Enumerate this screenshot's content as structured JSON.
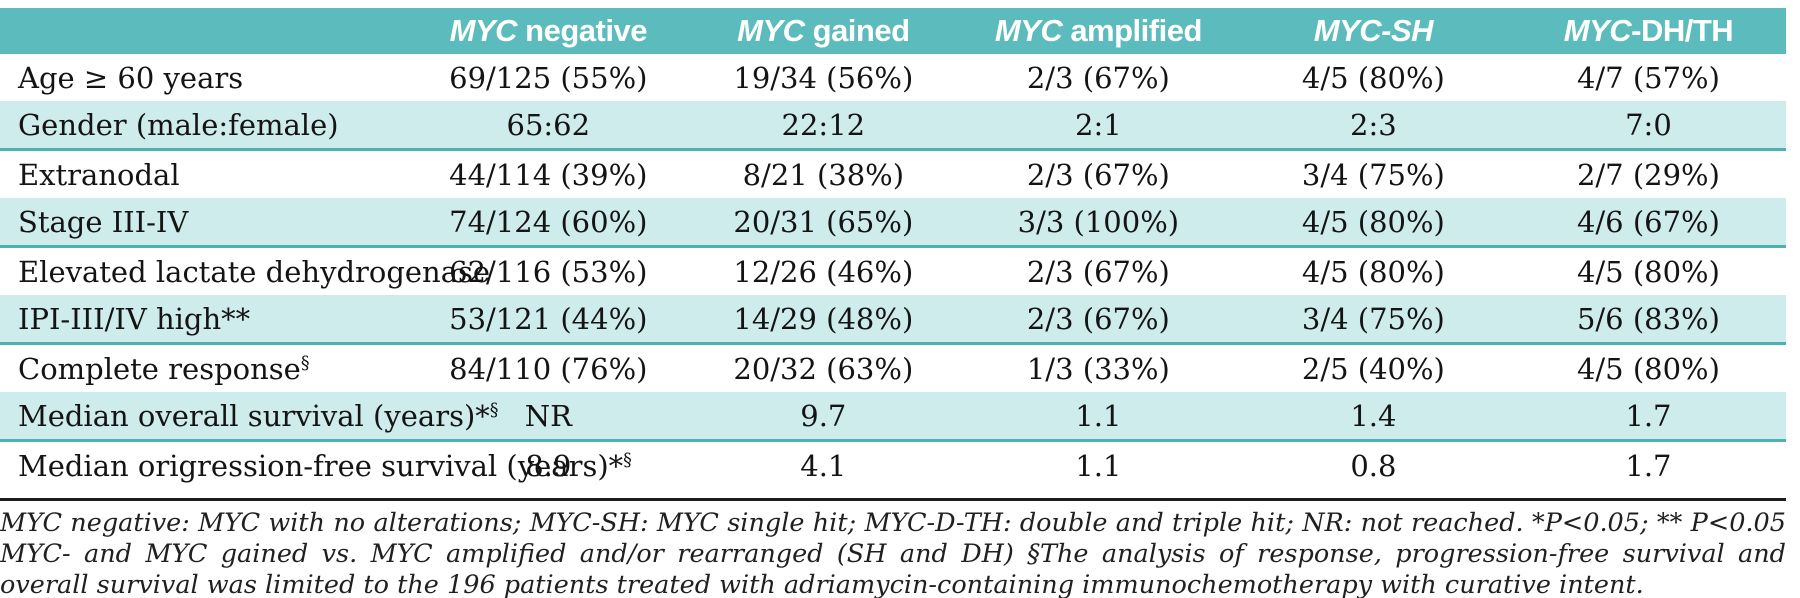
{
  "table": {
    "header": {
      "row_label_column": "",
      "columns": [
        {
          "italic": "MYC",
          "regular": " negative"
        },
        {
          "italic": "MYC",
          "regular": " gained"
        },
        {
          "italic": "MYC",
          "regular": " amplified"
        },
        {
          "italic": "MYC-SH",
          "regular": ""
        },
        {
          "italic": "MYC",
          "regular": "-DH/TH"
        }
      ]
    },
    "rows": [
      {
        "label": "Age ≥ 60 years",
        "sup": "",
        "values": [
          "69/125 (55%)",
          "19/34 (56%)",
          "2/3 (67%)",
          "4/5 (80%)",
          "4/7 (57%)"
        ]
      },
      {
        "label": "Gender (male:female)",
        "sup": "",
        "values": [
          "65:62",
          "22:12",
          "2:1",
          "2:3",
          "7:0"
        ]
      },
      {
        "label": "Extranodal",
        "sup": "",
        "values": [
          "44/114 (39%)",
          "8/21 (38%)",
          "2/3 (67%)",
          "3/4 (75%)",
          "2/7 (29%)"
        ]
      },
      {
        "label": "Stage III-IV",
        "sup": "",
        "values": [
          "74/124 (60%)",
          "20/31 (65%)",
          "3/3 (100%)",
          "4/5 (80%)",
          "4/6 (67%)"
        ]
      },
      {
        "label": "Elevated lactate dehydrogenase",
        "sup": "",
        "values": [
          "62/116 (53%)",
          "12/26 (46%)",
          "2/3 (67%)",
          "4/5 (80%)",
          "4/5 (80%)"
        ]
      },
      {
        "label": "IPI-III/IV high**",
        "sup": "",
        "values": [
          "53/121 (44%)",
          "14/29 (48%)",
          "2/3 (67%)",
          "3/4 (75%)",
          "5/6 (83%)"
        ]
      },
      {
        "label": "Complete response",
        "sup": "§",
        "values": [
          "84/110 (76%)",
          "20/32 (63%)",
          "1/3 (33%)",
          "2/5 (40%)",
          "4/5 (80%)"
        ]
      },
      {
        "label": "Median overall survival (years)*",
        "sup": "§",
        "values": [
          "NR",
          "9.7",
          "1.1",
          "1.4",
          "1.7"
        ]
      },
      {
        "label": "Median origression-free survival (years)*",
        "sup": "§",
        "values": [
          "8.9",
          "4.1",
          "1.1",
          "0.8",
          "1.7"
        ]
      }
    ]
  },
  "footnote": {
    "text": "MYC negative: MYC with no alterations; MYC-SH: MYC single hit; MYC-D-TH: double and triple hit; NR: not reached. *P<0.05; ** P<0.05 MYC- and MYC gained vs. MYC amplified and/or rearranged (SH and DH) §The analysis of response, progression-free survival and overall survival was limited to the 196 patients treated with adriamycin-containing immunochemotherapy with curative intent."
  },
  "colors": {
    "header_bg": "#5cbcbd",
    "shaded_row_bg": "#cdeceb",
    "shaded_row_border": "#4db0b1",
    "rule": "#1c1c1c",
    "text": "#141414"
  }
}
